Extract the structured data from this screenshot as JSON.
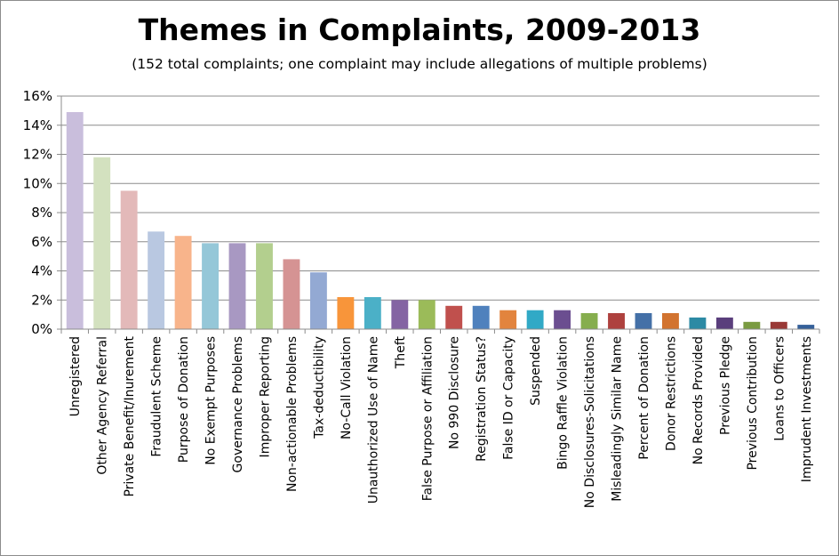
{
  "chart_data": {
    "type": "bar",
    "title": "Themes in Complaints, 2009-2013",
    "subtitle": "(152 total complaints; one complaint may include allegations of multiple problems)",
    "xlabel": "",
    "ylabel": "",
    "ylim": [
      0,
      16
    ],
    "yticks": [
      "0%",
      "2%",
      "4%",
      "6%",
      "8%",
      "10%",
      "12%",
      "14%",
      "16%"
    ],
    "grid": true,
    "legend": "none",
    "categories": [
      "Unregistered",
      "Other Agency Referral",
      "Private Benefit/Inurement",
      "Fraudulent Scheme",
      "Purpose of Donation",
      "No Exempt Purposes",
      "Governance Problems",
      "Improper Reporting",
      "Non-actionable Problems",
      "Tax-deductibility",
      "No-Call Violation",
      "Unauthorized Use of Name",
      "Theft",
      "False Purpose or Affiliation",
      "No 990 Disclosure",
      "Registration Status?",
      "False ID or Capacity",
      "Suspended",
      "Bingo Raffle Violation",
      "No Disclosures-Solicitations",
      "Misleadingly Similar Name",
      "Percent of Donation",
      "Donor Restrictions",
      "No Records Provided",
      "Previous Pledge",
      "Previous Contribution",
      "Loans to Officers",
      "Imprudent Investments"
    ],
    "values": [
      14.9,
      11.8,
      9.5,
      6.7,
      6.4,
      5.9,
      5.9,
      5.9,
      4.8,
      3.9,
      2.2,
      2.2,
      2.0,
      2.0,
      1.6,
      1.6,
      1.3,
      1.3,
      1.3,
      1.1,
      1.1,
      1.1,
      1.1,
      0.8,
      0.8,
      0.5,
      0.5,
      0.3
    ],
    "colors": [
      "#c9bedc",
      "#d3e1bf",
      "#e3b9b9",
      "#b9c8e1",
      "#f8b48b",
      "#95c7d8",
      "#a898c2",
      "#b3cf8e",
      "#d59393",
      "#93a9d3",
      "#f8953a",
      "#4bb0c7",
      "#8464a3",
      "#9bbb59",
      "#c0504d",
      "#4f81bd",
      "#e2843e",
      "#31a9c6",
      "#6b4e90",
      "#86ae4e",
      "#ae413e",
      "#4470a7",
      "#d2732f",
      "#2c8aa4",
      "#5a3e7c",
      "#7a9b41",
      "#993936",
      "#35609a"
    ]
  }
}
